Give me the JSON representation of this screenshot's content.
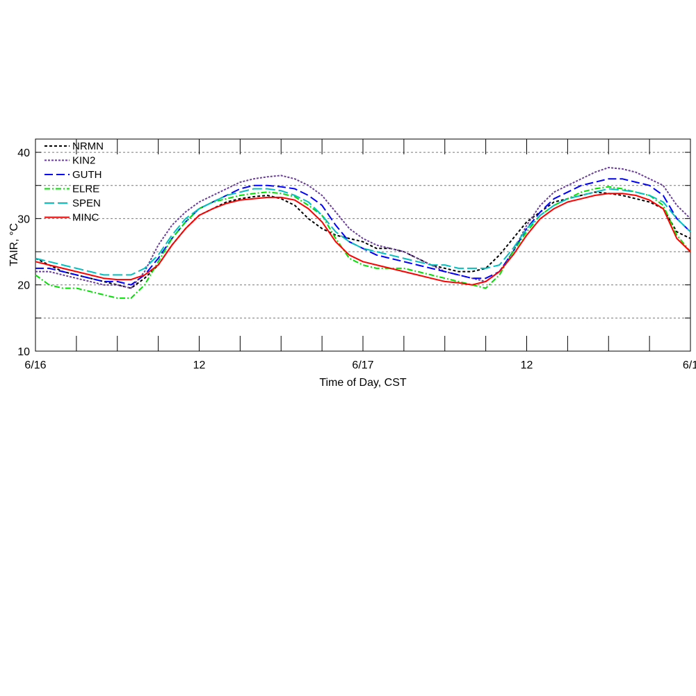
{
  "chart_data": {
    "type": "line",
    "title": "",
    "xlabel": "Time of Day, CST",
    "ylabel": "TAIR, °C",
    "xlim_hours": [
      0,
      48
    ],
    "ylim": [
      10,
      42
    ],
    "xticks": [
      {
        "hour": 0,
        "label": "6/16"
      },
      {
        "hour": 12,
        "label": "12"
      },
      {
        "hour": 24,
        "label": "6/17"
      },
      {
        "hour": 36,
        "label": "12"
      },
      {
        "hour": 48,
        "label": "6/1"
      }
    ],
    "yticks": [
      10,
      20,
      30,
      40
    ],
    "grid_y": [
      15,
      20,
      25,
      30,
      35,
      40
    ],
    "grid": "horizontal dashed",
    "legend_position": "top-left",
    "x_hours": [
      0,
      1,
      2,
      3,
      4,
      5,
      6,
      7,
      8,
      9,
      10,
      11,
      12,
      13,
      14,
      15,
      16,
      17,
      18,
      19,
      20,
      21,
      22,
      23,
      24,
      25,
      26,
      27,
      28,
      29,
      30,
      31,
      32,
      33,
      34,
      35,
      36,
      37,
      38,
      39,
      40,
      41,
      42,
      43,
      44,
      45,
      46,
      47,
      48
    ],
    "series": [
      {
        "name": "NRMN",
        "color": "#000000",
        "dash": "4 3",
        "values": [
          24,
          23,
          22,
          21.5,
          21,
          20.5,
          20,
          19.5,
          21,
          23,
          26,
          28.5,
          30.5,
          31.5,
          32.5,
          33,
          33.3,
          33.5,
          33,
          32,
          30,
          28.5,
          27.5,
          27,
          26.5,
          25.5,
          25.5,
          25,
          24,
          23,
          22.5,
          22,
          22,
          22.5,
          24.5,
          27,
          29.5,
          31,
          32.5,
          33,
          33.5,
          34,
          33.8,
          33.5,
          33,
          32.5,
          31.5,
          28,
          27
        ]
      },
      {
        "name": "KIN2",
        "color": "#6a3d9a",
        "dash": "3 2",
        "values": [
          22,
          22,
          21.5,
          21,
          20.5,
          20,
          20,
          19.5,
          22,
          26,
          29,
          31,
          32.5,
          33.5,
          34.5,
          35.5,
          36,
          36.3,
          36.5,
          36,
          35,
          33.5,
          31,
          28.5,
          27,
          26,
          25.5,
          25,
          24,
          23,
          22,
          21.5,
          21,
          20.5,
          22,
          25,
          29,
          32,
          34,
          35,
          36,
          37,
          37.7,
          37.5,
          37,
          36,
          35,
          32,
          30
        ]
      },
      {
        "name": "GUTH",
        "color": "#0000ff",
        "dash": "12 5",
        "values": [
          22.5,
          22.5,
          22,
          21.5,
          21,
          20.5,
          20.5,
          20,
          21.5,
          24,
          27,
          29.5,
          31.5,
          32.5,
          33.5,
          34.5,
          35,
          35,
          34.8,
          34.5,
          33.5,
          32,
          29,
          26.5,
          25.5,
          24.5,
          24,
          23.5,
          23,
          22.5,
          22,
          21.5,
          21,
          21,
          22,
          25,
          28.5,
          31,
          33,
          34,
          35,
          35.5,
          36,
          36,
          35.5,
          35,
          33.5,
          30,
          28
        ]
      },
      {
        "name": "ELRE",
        "color": "#00e000",
        "dash": "8 3 2 3",
        "values": [
          21.5,
          20,
          19.5,
          19.5,
          19,
          18.5,
          18,
          18,
          20,
          23.5,
          27,
          29.5,
          31.5,
          32.5,
          33,
          33.5,
          33.8,
          34,
          33.8,
          33.3,
          32,
          30.5,
          27,
          24,
          23,
          22.5,
          22.5,
          22.5,
          22,
          21.5,
          21,
          20.5,
          20,
          19.5,
          21.5,
          25,
          28,
          30.5,
          32,
          33,
          34,
          34.5,
          34.8,
          34.5,
          34,
          33.5,
          32,
          27.5,
          25
        ]
      },
      {
        "name": "SPEN",
        "color": "#00c0c0",
        "dash": "14 5",
        "values": [
          24,
          23.5,
          23,
          22.5,
          22,
          21.5,
          21.5,
          21.5,
          22.5,
          24.5,
          27.5,
          30,
          31.5,
          32.5,
          33.5,
          34,
          34.5,
          34.5,
          34.2,
          33.5,
          32.5,
          30.5,
          28,
          26.5,
          25.5,
          25,
          24.5,
          24,
          23.5,
          23,
          23,
          22.5,
          22.5,
          22.5,
          23,
          25.5,
          28.5,
          30.5,
          32,
          33,
          33.5,
          34,
          34.5,
          34.3,
          34,
          33.5,
          32.5,
          30,
          28
        ]
      },
      {
        "name": "MINC",
        "color": "#ff0000",
        "dash": "",
        "values": [
          23.5,
          23,
          22.5,
          22,
          21.5,
          21,
          20.8,
          20.8,
          21.5,
          23,
          26,
          28.5,
          30.5,
          31.5,
          32.3,
          32.8,
          33,
          33.2,
          33.2,
          32.8,
          31.5,
          29.5,
          26.5,
          24.5,
          23.5,
          23,
          22.5,
          22,
          21.5,
          21,
          20.5,
          20.3,
          20,
          20.5,
          22,
          24.5,
          27.5,
          30,
          31.5,
          32.5,
          33,
          33.5,
          33.8,
          33.8,
          33.5,
          32.8,
          31.5,
          27,
          25
        ]
      }
    ]
  }
}
